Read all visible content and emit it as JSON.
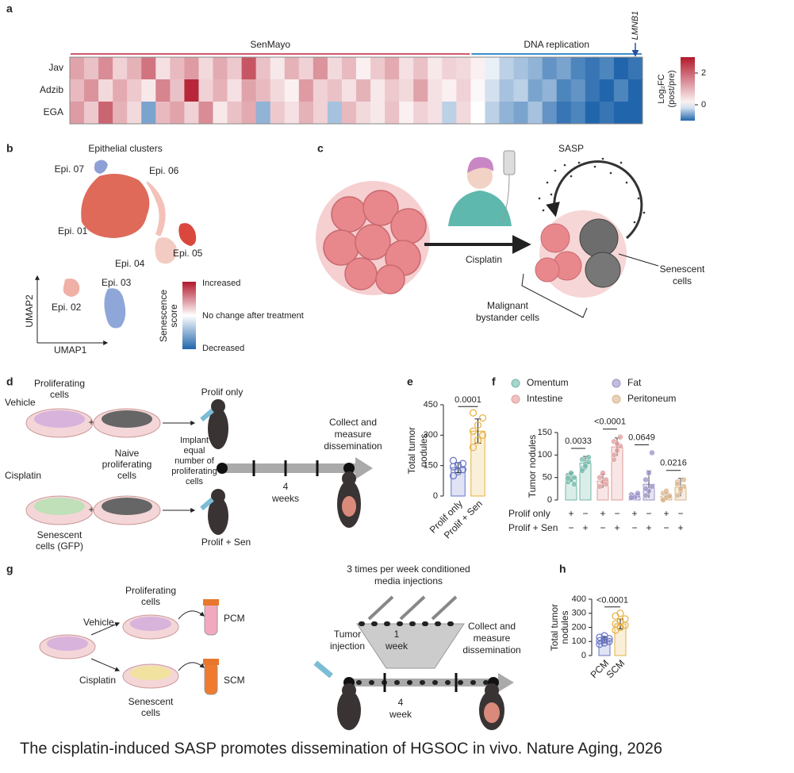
{
  "chart_data": [
    {
      "type": "heatmap",
      "label": "a",
      "groups": [
        {
          "name": "SenMayo",
          "count": 28,
          "color": "#d05a6a"
        },
        {
          "name": "DNA replication",
          "count": 12,
          "color": "#3b8fc9"
        }
      ],
      "marker": "LMNB1",
      "rows": [
        "Jav",
        "Adzib",
        "EGA"
      ],
      "values": [
        [
          1.2,
          0.8,
          1.5,
          0.6,
          1.0,
          1.8,
          0.4,
          0.9,
          1.3,
          0.5,
          1.1,
          0.7,
          2.2,
          0.8,
          0.3,
          1.0,
          0.6,
          1.4,
          0.5,
          0.9,
          0.2,
          0.7,
          1.1,
          0.4,
          0.8,
          0.3,
          0.6,
          0.5,
          0.2,
          -0.1,
          -0.3,
          -0.4,
          -0.5,
          -0.7,
          -0.6,
          -0.8,
          -0.9,
          -0.8,
          -1.0,
          -0.9
        ],
        [
          0.9,
          1.4,
          0.5,
          1.1,
          0.7,
          0.3,
          1.6,
          0.8,
          2.8,
          0.6,
          1.0,
          0.4,
          1.2,
          0.9,
          0.5,
          0.2,
          1.3,
          0.6,
          0.8,
          0.4,
          1.0,
          0.3,
          0.7,
          0.5,
          1.2,
          0.4,
          0.2,
          0.6,
          0.1,
          -0.2,
          -0.4,
          -0.3,
          -0.6,
          -0.5,
          -0.8,
          -0.7,
          -0.9,
          -1.0,
          -0.8,
          -1.0
        ],
        [
          1.3,
          0.7,
          2.0,
          1.0,
          0.5,
          -0.6,
          0.9,
          1.2,
          0.6,
          1.5,
          0.3,
          0.8,
          1.1,
          -0.5,
          0.7,
          0.4,
          1.0,
          0.6,
          -0.4,
          0.9,
          0.5,
          0.3,
          0.8,
          0.2,
          0.6,
          0.4,
          -0.3,
          0.5,
          0.0,
          -0.3,
          -0.5,
          -0.6,
          -0.4,
          -0.7,
          -0.9,
          -0.8,
          -1.0,
          -0.9,
          -1.1,
          -1.0
        ]
      ],
      "clim": [
        -1,
        3
      ],
      "cticks": [
        2,
        0
      ],
      "colorbar_label": [
        "Log₂FC",
        "(post/pre)"
      ]
    },
    {
      "type": "bar",
      "label": "e",
      "categories": [
        "Prolif only",
        "Prolif + Sen"
      ],
      "values": [
        140,
        320
      ],
      "errors": [
        25,
        60
      ],
      "points": [
        [
          100,
          120,
          130,
          145,
          150,
          160,
          175
        ],
        [
          240,
          275,
          300,
          320,
          350,
          385,
          410
        ]
      ],
      "colors": [
        "#6674c4",
        "#e6b040"
      ],
      "ylabel": [
        "Total tumor",
        "nodules"
      ],
      "ylim": [
        0,
        450
      ],
      "yticks": [
        0,
        150,
        300,
        450
      ],
      "annotation": "0.0001"
    },
    {
      "type": "grouped-bar",
      "label": "f",
      "categories": [
        "Omentum",
        "Intestine",
        "Fat",
        "Peritoneum"
      ],
      "colors": [
        "#6fb9a8",
        "#e29a9a",
        "#9a90c8",
        "#d9b48a"
      ],
      "series": [
        {
          "name": "Prolif only",
          "values": [
            50,
            42,
            8,
            8
          ],
          "errors": [
            10,
            15,
            5,
            8
          ],
          "points": [
            [
              40,
              45,
              50,
              55,
              60,
              35,
              48
            ],
            [
              30,
              40,
              45,
              50,
              60,
              35
            ],
            [
              5,
              8,
              10,
              12,
              6,
              15,
              5
            ],
            [
              2,
              5,
              10,
              15,
              20,
              8,
              0
            ]
          ]
        },
        {
          "name": "Prolif + Sen",
          "values": [
            82,
            118,
            35,
            28
          ],
          "errors": [
            15,
            20,
            30,
            20
          ],
          "points": [
            [
              70,
              80,
              85,
              90,
              75,
              95,
              65
            ],
            [
              90,
              110,
              120,
              130,
              125,
              140,
              100
            ],
            [
              10,
              20,
              30,
              45,
              60,
              105,
              25
            ],
            [
              10,
              20,
              30,
              40,
              25,
              45,
              35
            ]
          ]
        }
      ],
      "signs": [
        [
          "+",
          "−"
        ],
        [
          "−",
          "+"
        ]
      ],
      "p_values": [
        "0.0033",
        "<0.0001",
        "0.0649",
        "0.0216"
      ],
      "ylabel": "Tumor nodules",
      "ylim": [
        0,
        150
      ],
      "yticks": [
        0,
        50,
        100,
        150
      ]
    },
    {
      "type": "bar",
      "label": "h",
      "categories": [
        "PCM",
        "SCM"
      ],
      "values": [
        110,
        225
      ],
      "errors": [
        20,
        35
      ],
      "points": [
        [
          80,
          90,
          100,
          105,
          115,
          120,
          130,
          140
        ],
        [
          180,
          200,
          215,
          225,
          240,
          260,
          280,
          300
        ]
      ],
      "colors": [
        "#6674c4",
        "#e6b040"
      ],
      "ylabel": [
        "Total tumor",
        "nodules"
      ],
      "ylim": [
        0,
        400
      ],
      "yticks": [
        0,
        100,
        200,
        300,
        400
      ],
      "annotation": "<0.0001"
    }
  ],
  "panels": {
    "b": {
      "label": "b",
      "title": "Epithelial clusters",
      "clusters": [
        "Epi. 07",
        "Epi. 06",
        "Epi. 01",
        "Epi. 05",
        "Epi. 04",
        "Epi. 02",
        "Epi. 03"
      ],
      "axis_y": "UMAP2",
      "axis_x": "UMAP1",
      "score_label": [
        "Senescence",
        "score"
      ],
      "score_levels": [
        "Increased",
        "No change after treatment",
        "Decreased"
      ]
    },
    "c": {
      "label": "c",
      "sasp": "SASP",
      "drug": "Cisplatin",
      "senescent": [
        "Senescent",
        "cells"
      ],
      "bystander": [
        "Malignant",
        "bystander cells"
      ]
    },
    "d": {
      "label": "d",
      "proliferating": [
        "Proliferating",
        "cells"
      ],
      "vehicle": "Vehicle",
      "plus": "+",
      "naive": [
        "Naive",
        "proliferating",
        "cells"
      ],
      "prolif_only": "Prolif only",
      "implant": [
        "Implant",
        "equal",
        "number of",
        "proliferating",
        "cells"
      ],
      "weeks": [
        "4",
        "weeks"
      ],
      "collect": [
        "Collect and",
        "measure",
        "dissemination"
      ],
      "cisplatin": "Cisplatin",
      "senescent": [
        "Senescent",
        "cells (GFP)"
      ],
      "prolif_sen": "Prolif + Sen"
    },
    "g": {
      "label": "g",
      "proliferating": [
        "Proliferating",
        "cells"
      ],
      "vehicle": "Vehicle",
      "pcm": "PCM",
      "cisplatin": "Cisplatin",
      "scm": "SCM",
      "senescent": [
        "Senescent",
        "cells"
      ],
      "injections": [
        "3 times per week conditioned",
        "media injections"
      ],
      "one_week": [
        "1",
        "week"
      ],
      "tumor": [
        "Tumor",
        "injection"
      ],
      "collect": [
        "Collect and",
        "measure",
        "dissemination"
      ],
      "four_week": [
        "4",
        "week"
      ]
    }
  },
  "caption": "The cisplatin-induced SASP promotes dissemination of HGSOC in vivo. Nature Aging, 2026"
}
